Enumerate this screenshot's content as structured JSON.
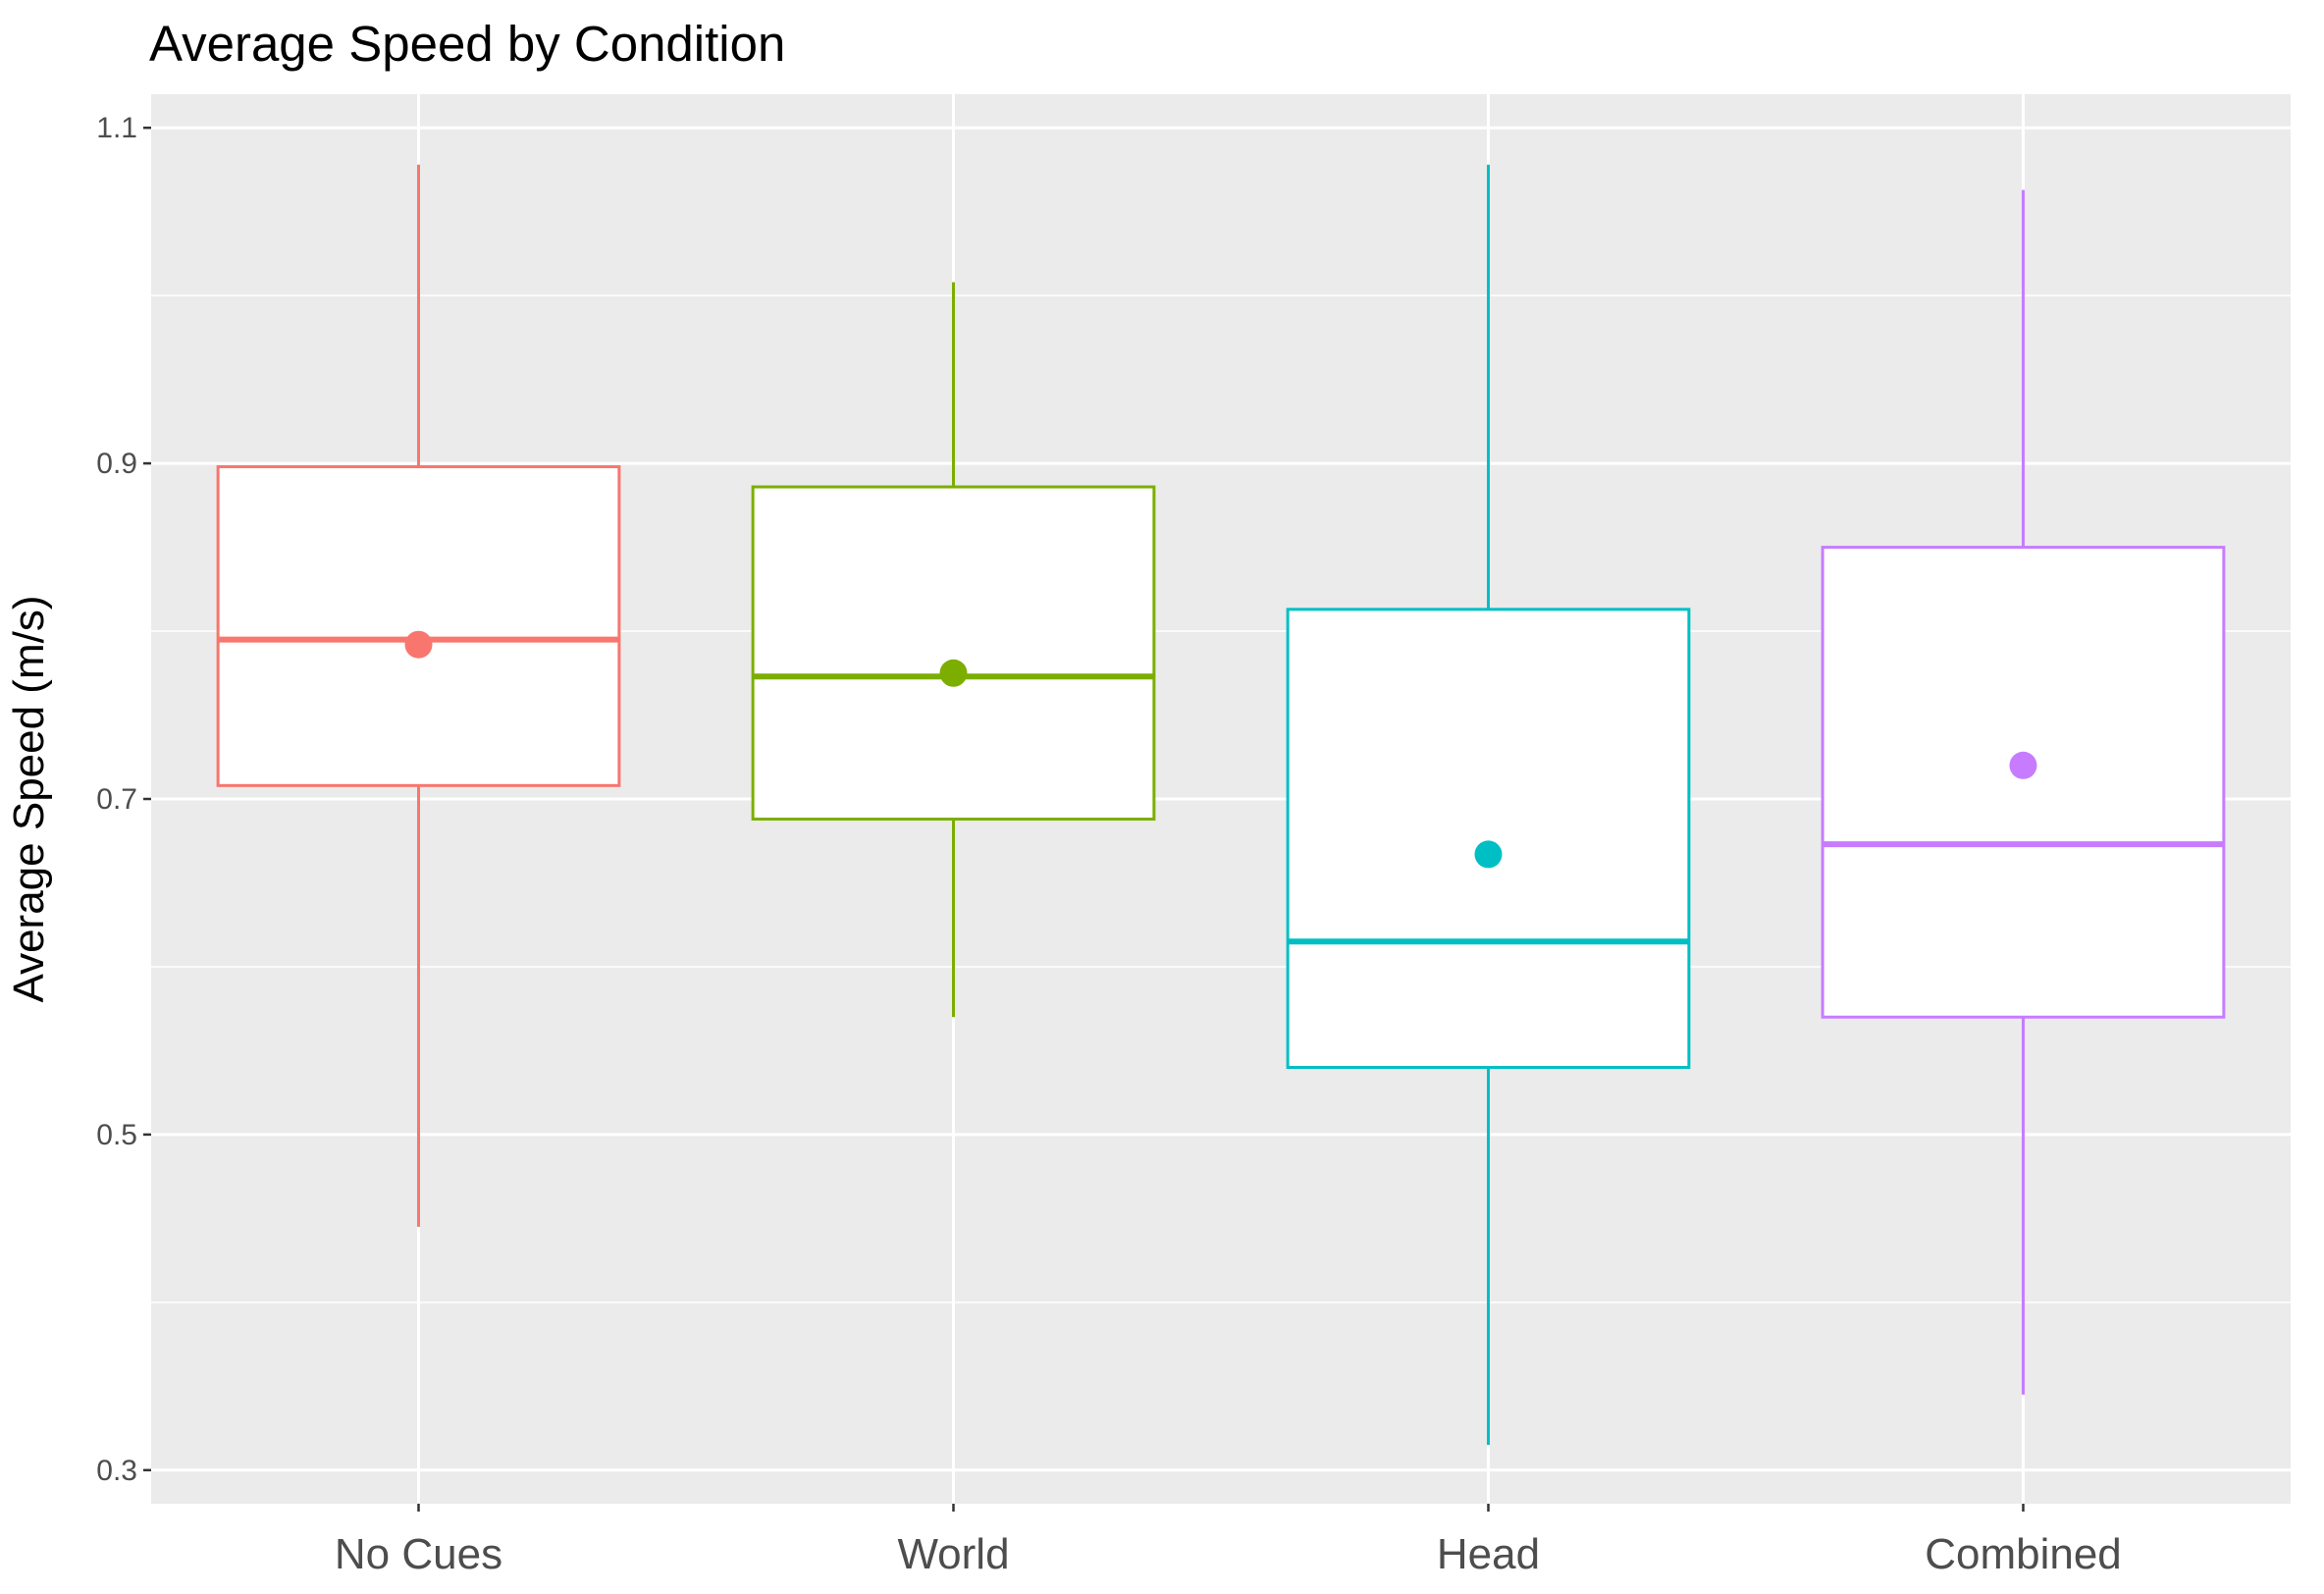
{
  "chart_data": {
    "type": "boxplot",
    "title": "Average Speed by Condition",
    "xlabel": "",
    "ylabel": "Average Speed (m/s)",
    "ylim": [
      0.28,
      1.12
    ],
    "y_ticks": [
      "0.3",
      "0.5",
      "0.7",
      "0.9",
      "1.1"
    ],
    "y_tick_values": [
      0.3,
      0.5,
      0.7,
      0.9,
      1.1
    ],
    "y_minor_values": [
      0.4,
      0.6,
      0.8,
      1.0
    ],
    "grid": true,
    "legend": "none",
    "categories": [
      "No Cues",
      "World",
      "Head",
      "Combined"
    ],
    "colors": [
      "#F8766D",
      "#7CAE00",
      "#00BFC4",
      "#C77CFF"
    ],
    "panel_background": "#EBEBEB",
    "series": [
      {
        "category": "No Cues",
        "whisker_low": 0.445,
        "q1": 0.708,
        "median": 0.795,
        "q3": 0.898,
        "whisker_high": 1.078,
        "mean": 0.792
      },
      {
        "category": "World",
        "whisker_low": 0.57,
        "q1": 0.688,
        "median": 0.773,
        "q3": 0.886,
        "whisker_high": 1.008,
        "mean": 0.775
      },
      {
        "category": "Head",
        "whisker_low": 0.315,
        "q1": 0.54,
        "median": 0.615,
        "q3": 0.813,
        "whisker_high": 1.078,
        "mean": 0.667
      },
      {
        "category": "Combined",
        "whisker_low": 0.345,
        "q1": 0.57,
        "median": 0.673,
        "q3": 0.85,
        "whisker_high": 1.063,
        "mean": 0.72
      }
    ]
  }
}
